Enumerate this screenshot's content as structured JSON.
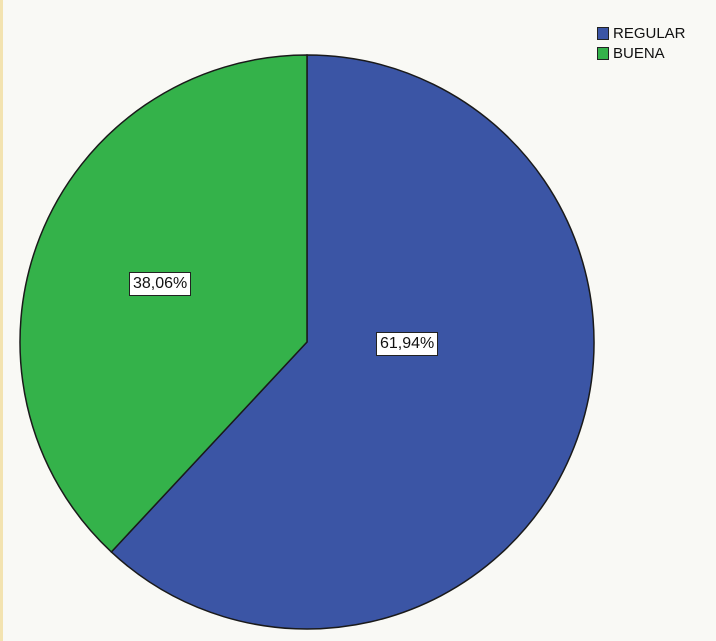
{
  "chart_data": {
    "type": "pie",
    "categories": [
      "REGULAR",
      "BUENA"
    ],
    "values": [
      61.94,
      38.06
    ],
    "labels": [
      "61,94%",
      "38,06%"
    ],
    "colors": [
      "#3b55a5",
      "#34b24a"
    ],
    "legend_position": "top-right",
    "title": ""
  }
}
